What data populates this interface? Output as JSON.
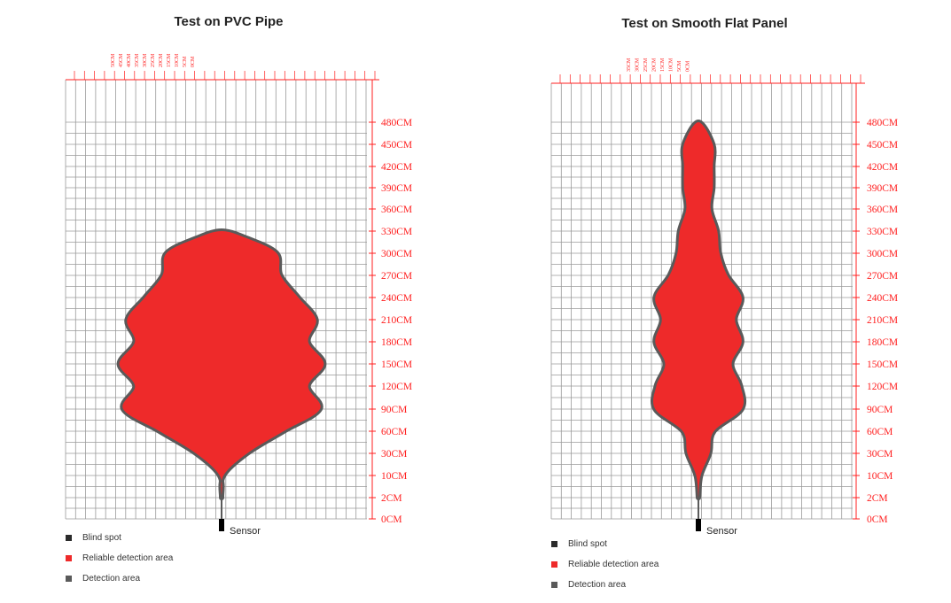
{
  "chart_data": [
    {
      "type": "area",
      "title": "Test on PVC Pipe",
      "y_tick_labels": [
        "0CM",
        "2CM",
        "10CM",
        "30CM",
        "60CM",
        "90CM",
        "120CM",
        "150CM",
        "180CM",
        "210CM",
        "240CM",
        "270CM",
        "300CM",
        "330CM",
        "360CM",
        "390CM",
        "420CM",
        "450CM",
        "480CM"
      ],
      "x_tick_labels": [
        "50CM",
        "45CM",
        "40CM",
        "35CM",
        "30CM",
        "25CM",
        "20CM",
        "15CM",
        "10CM",
        "5CM",
        "0CM"
      ],
      "sensor_label": "Sensor",
      "legend": [
        "Blind spot",
        "Reliable detection area",
        "Detection area"
      ],
      "colors": {
        "blind_spot": "#2b2b2b",
        "reliable": "#ee2a2a",
        "detection": "#5a5a5a",
        "axis": "#ff1f1f",
        "grid": "#9a9a9a"
      },
      "detection_profile": {
        "distance_cm": [
          2,
          10,
          30,
          60,
          90,
          120,
          150,
          180,
          210,
          240,
          270,
          300,
          320,
          330
        ],
        "half_width_cm": [
          0,
          2,
          26,
          63,
          100,
          88,
          104,
          88,
          96,
          78,
          60,
          56,
          26,
          0
        ]
      }
    },
    {
      "type": "area",
      "title": "Test on Smooth Flat Panel",
      "y_tick_labels": [
        "0CM",
        "2CM",
        "10CM",
        "30CM",
        "60CM",
        "90CM",
        "120CM",
        "150CM",
        "180CM",
        "210CM",
        "240CM",
        "270CM",
        "300CM",
        "330CM",
        "360CM",
        "390CM",
        "420CM",
        "450CM",
        "480CM"
      ],
      "x_tick_labels": [
        "35CM",
        "30CM",
        "25CM",
        "20CM",
        "15CM",
        "10CM",
        "5CM",
        "0CM"
      ],
      "sensor_label": "Sensor",
      "legend": [
        "Blind spot",
        "Reliable detection area",
        "Detection area"
      ],
      "colors": {
        "blind_spot": "#2b2b2b",
        "reliable": "#ee2a2a",
        "detection": "#5a5a5a",
        "axis": "#ff1f1f",
        "grid": "#9a9a9a"
      },
      "detection_profile": {
        "distance_cm": [
          2,
          10,
          30,
          60,
          90,
          120,
          150,
          180,
          210,
          240,
          270,
          300,
          330,
          360,
          390,
          420,
          450,
          480
        ],
        "half_width_cm": [
          0,
          2,
          10,
          14,
          39,
          38,
          30,
          39,
          33,
          39,
          26,
          19,
          17,
          11,
          13,
          13,
          13,
          0
        ]
      }
    }
  ]
}
